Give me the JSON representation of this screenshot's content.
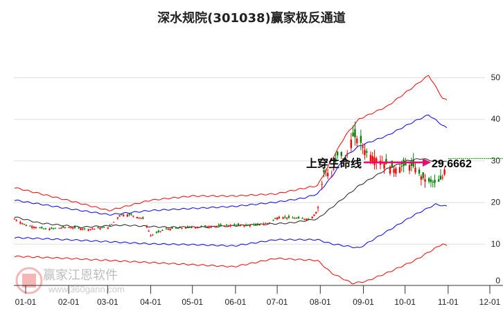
{
  "title": "深水规院(301038)赢家极反通道",
  "watermark": {
    "name": "赢家江恩软件",
    "url": "www.360gann.com",
    "seal": "江恩赢家"
  },
  "chart_data": {
    "type": "line",
    "title": "深水规院(301038)赢家极反通道",
    "x_ticks": [
      "01-01",
      "02-01",
      "03-01",
      "04-01",
      "05-01",
      "06-01",
      "07-01",
      "08-01",
      "09-01",
      "10-01",
      "11-01",
      "12-01"
    ],
    "x_tick_days": [
      0,
      31,
      59,
      90,
      120,
      151,
      181,
      212,
      243,
      273,
      304,
      334
    ],
    "y_ticks": [
      0,
      10,
      20,
      30,
      40,
      50
    ],
    "ylim": [
      0,
      52
    ],
    "grid": "horizontal",
    "series": [
      {
        "name": "red-upper",
        "color": "#ff0000",
        "points": [
          [
            -8,
            23.5
          ],
          [
            30,
            20.5
          ],
          [
            60,
            18
          ],
          [
            90,
            20.5
          ],
          [
            120,
            21.5
          ],
          [
            150,
            21.5
          ],
          [
            180,
            22
          ],
          [
            210,
            24
          ],
          [
            220,
            30
          ],
          [
            230,
            36
          ],
          [
            240,
            40
          ],
          [
            260,
            43
          ],
          [
            280,
            48
          ],
          [
            290,
            50.5
          ],
          [
            300,
            45
          ],
          [
            303,
            44.5
          ]
        ]
      },
      {
        "name": "blue-upper",
        "color": "#0000ff",
        "points": [
          [
            -8,
            20.5
          ],
          [
            30,
            18.5
          ],
          [
            60,
            17
          ],
          [
            90,
            18
          ],
          [
            120,
            18.5
          ],
          [
            150,
            19
          ],
          [
            180,
            20
          ],
          [
            200,
            21
          ],
          [
            210,
            22
          ],
          [
            220,
            26
          ],
          [
            230,
            31
          ],
          [
            240,
            33.5
          ],
          [
            260,
            36
          ],
          [
            280,
            39.5
          ],
          [
            290,
            41
          ],
          [
            300,
            38.5
          ],
          [
            303,
            37.8
          ]
        ]
      },
      {
        "name": "lifeline",
        "color": "#222222",
        "points": [
          [
            -8,
            16.5
          ],
          [
            10,
            15
          ],
          [
            40,
            14
          ],
          [
            70,
            14.5
          ],
          [
            100,
            14
          ],
          [
            130,
            14
          ],
          [
            160,
            14.5
          ],
          [
            190,
            15
          ],
          [
            210,
            16
          ],
          [
            225,
            20
          ],
          [
            240,
            24
          ],
          [
            260,
            28
          ],
          [
            275,
            30
          ],
          [
            285,
            30.5
          ],
          [
            295,
            29.8
          ],
          [
            303,
            29.7
          ]
        ]
      },
      {
        "name": "blue-lower",
        "color": "#0000ff",
        "points": [
          [
            -8,
            11.5
          ],
          [
            30,
            11
          ],
          [
            60,
            10.5
          ],
          [
            90,
            10
          ],
          [
            120,
            9.8
          ],
          [
            150,
            9.5
          ],
          [
            180,
            11
          ],
          [
            210,
            11
          ],
          [
            220,
            10
          ],
          [
            240,
            9
          ],
          [
            260,
            13
          ],
          [
            280,
            17
          ],
          [
            295,
            19.5
          ],
          [
            303,
            19
          ]
        ]
      },
      {
        "name": "red-lower",
        "color": "#ff0000",
        "points": [
          [
            -8,
            7
          ],
          [
            30,
            6.5
          ],
          [
            60,
            6
          ],
          [
            90,
            5.5
          ],
          [
            120,
            5
          ],
          [
            150,
            4.5
          ],
          [
            180,
            6.5
          ],
          [
            210,
            6
          ],
          [
            220,
            3
          ],
          [
            235,
            0.5
          ],
          [
            245,
            1
          ],
          [
            260,
            3
          ],
          [
            280,
            6
          ],
          [
            290,
            8
          ],
          [
            300,
            10
          ],
          [
            303,
            9.5
          ]
        ]
      }
    ],
    "price_close": [
      [
        -8,
        16
      ],
      [
        0,
        14.5
      ],
      [
        15,
        13.5
      ],
      [
        30,
        14
      ],
      [
        45,
        13.5
      ],
      [
        60,
        14
      ],
      [
        68,
        17
      ],
      [
        75,
        17
      ],
      [
        85,
        16
      ],
      [
        90,
        12
      ],
      [
        100,
        13.5
      ],
      [
        120,
        14
      ],
      [
        150,
        14.5
      ],
      [
        165,
        14.5
      ],
      [
        175,
        15
      ],
      [
        182,
        16.5
      ],
      [
        200,
        16
      ],
      [
        205,
        16
      ],
      [
        210,
        18
      ],
      [
        215,
        28
      ],
      [
        220,
        26
      ],
      [
        225,
        32
      ],
      [
        230,
        30
      ],
      [
        235,
        36
      ],
      [
        240,
        35
      ],
      [
        245,
        32
      ],
      [
        255,
        30
      ],
      [
        265,
        28
      ],
      [
        275,
        29
      ],
      [
        280,
        28.5
      ],
      [
        285,
        26
      ],
      [
        290,
        25
      ],
      [
        296,
        24.5
      ],
      [
        300,
        26
      ],
      [
        303,
        30
      ]
    ],
    "annotations": {
      "signal_label": "上穿生命线",
      "value_label": "29.6662",
      "value": 29.6662,
      "reference_level": 30.5
    }
  }
}
